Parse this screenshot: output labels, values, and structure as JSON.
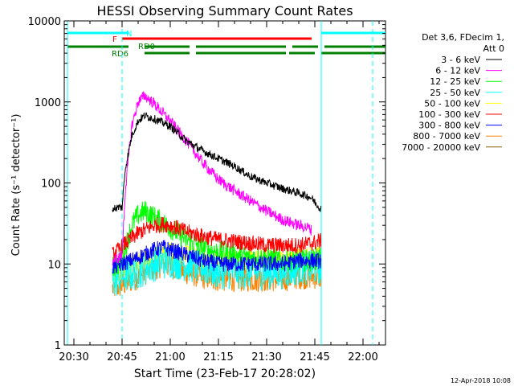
{
  "chart_data": {
    "type": "line",
    "title": "HESSI Observing Summary Count Rates",
    "xlabel": "Start Time (23-Feb-17 20:28:02)",
    "ylabel": "Count Rate (s⁻¹ detector⁻¹)",
    "y_scale": "log",
    "ylim": [
      1,
      10000
    ],
    "xlim": [
      "20:27",
      "22:07"
    ],
    "x_ticks": [
      "20:30",
      "20:45",
      "21:00",
      "21:15",
      "21:30",
      "21:45",
      "22:00"
    ],
    "y_ticks": [
      "1",
      "10",
      "100",
      "1000",
      "10000"
    ],
    "grid": false,
    "legend_header": [
      "Det 3,6, FDecim 1,",
      "Att 0"
    ],
    "legend_position": "right",
    "footer": "12-Apr-2018 10:08",
    "flag_bars": [
      {
        "label": "N",
        "color": "#00ffff",
        "segments": [
          [
            "20:28",
            "20:47"
          ],
          [
            "21:47",
            "22:07"
          ]
        ]
      },
      {
        "label": "F",
        "color": "#ff0000",
        "segments": [
          [
            "20:45",
            "21:44"
          ]
        ]
      },
      {
        "label": "RD0",
        "color": "#008000",
        "segments": [
          [
            "20:28",
            "20:47"
          ],
          [
            "20:52",
            "21:06"
          ],
          [
            "21:08",
            "21:36"
          ],
          [
            "21:38",
            "21:46"
          ],
          [
            "21:48",
            "22:07"
          ]
        ]
      },
      {
        "label": "RD6",
        "color": "#008000",
        "segments": [
          [
            "20:52",
            "21:06"
          ],
          [
            "21:08",
            "21:36"
          ],
          [
            "21:37",
            "21:45"
          ],
          [
            "21:47",
            "22:07"
          ]
        ]
      }
    ],
    "vlines": [
      {
        "x": "20:28",
        "color": "#00ffff",
        "style": "solid"
      },
      {
        "x": "20:45",
        "color": "#00ffff",
        "style": "dashed"
      },
      {
        "x": "21:47",
        "color": "#00ffff",
        "style": "solid"
      },
      {
        "x": "22:03",
        "color": "#00ffff",
        "style": "dashed"
      }
    ],
    "series": [
      {
        "name": "3 - 6 keV",
        "color": "#000000",
        "x": [
          "20:42",
          "20:44",
          "20:45",
          "20:46",
          "20:48",
          "20:50",
          "20:52",
          "20:55",
          "21:00",
          "21:05",
          "21:10",
          "21:15",
          "21:20",
          "21:25",
          "21:30",
          "21:35",
          "21:40",
          "21:43",
          "21:44",
          "21:46",
          "21:47"
        ],
        "values": [
          48,
          50,
          50,
          150,
          380,
          580,
          680,
          620,
          500,
          330,
          250,
          200,
          160,
          120,
          100,
          85,
          75,
          68,
          65,
          52,
          48
        ]
      },
      {
        "name": "6 - 12 keV",
        "color": "#ff00ff",
        "x": [
          "20:42",
          "20:44",
          "20:45",
          "20:46",
          "20:48",
          "20:50",
          "20:52",
          "20:55",
          "21:00",
          "21:05",
          "21:10",
          "21:15",
          "21:20",
          "21:25",
          "21:30",
          "21:35",
          "21:40",
          "21:43",
          "21:44"
        ],
        "values": [
          11,
          12,
          13,
          80,
          500,
          1000,
          1200,
          950,
          580,
          330,
          180,
          110,
          80,
          60,
          45,
          35,
          30,
          28,
          26
        ]
      },
      {
        "name": "12 - 25 keV",
        "color": "#00ff00",
        "x": [
          "20:42",
          "20:44",
          "20:45",
          "20:48",
          "20:50",
          "20:52",
          "20:55",
          "21:00",
          "21:05",
          "21:10",
          "21:15",
          "21:20",
          "21:25",
          "21:30",
          "21:35",
          "21:40",
          "21:44",
          "21:46",
          "21:47"
        ],
        "values": [
          9,
          10,
          11,
          30,
          40,
          45,
          38,
          28,
          20,
          16,
          14,
          13,
          12,
          12,
          11,
          11,
          11,
          12,
          12
        ]
      },
      {
        "name": "25 - 50 keV",
        "color": "#00ffff",
        "x": [
          "20:42",
          "20:45",
          "20:50",
          "20:55",
          "21:00",
          "21:05",
          "21:10",
          "21:15",
          "21:20",
          "21:25",
          "21:30",
          "21:35",
          "21:40",
          "21:44",
          "21:47"
        ],
        "values": [
          6,
          7,
          8,
          10,
          11,
          10,
          9,
          8,
          8,
          8,
          8,
          8,
          9,
          9,
          9
        ]
      },
      {
        "name": "50 - 100 keV",
        "color": "#ffff00",
        "x": [
          "20:42",
          "20:45",
          "20:50",
          "20:55",
          "21:00",
          "21:05",
          "21:10",
          "21:15",
          "21:20",
          "21:25",
          "21:30",
          "21:35",
          "21:40",
          "21:44",
          "21:47"
        ],
        "values": [
          7,
          8,
          10,
          13,
          14,
          13,
          12,
          11,
          11,
          11,
          11,
          11,
          12,
          12,
          12
        ]
      },
      {
        "name": "100 - 300 keV",
        "color": "#ff0000",
        "x": [
          "20:42",
          "20:44",
          "20:46",
          "20:50",
          "20:55",
          "20:58",
          "21:00",
          "21:05",
          "21:10",
          "21:15",
          "21:20",
          "21:25",
          "21:30",
          "21:35",
          "21:40",
          "21:44",
          "21:46",
          "21:47"
        ],
        "values": [
          13,
          15,
          18,
          24,
          30,
          31,
          30,
          25,
          22,
          20,
          19,
          18,
          17,
          17,
          17,
          18,
          19,
          19
        ]
      },
      {
        "name": "300 - 800 keV",
        "color": "#0000ff",
        "x": [
          "20:42",
          "20:45",
          "20:50",
          "20:55",
          "20:58",
          "21:00",
          "21:05",
          "21:10",
          "21:15",
          "21:20",
          "21:25",
          "21:30",
          "21:35",
          "21:40",
          "21:44",
          "21:47"
        ],
        "values": [
          9,
          10,
          12,
          15,
          16,
          15,
          13,
          11,
          10,
          10,
          10,
          10,
          10,
          11,
          11,
          11
        ]
      },
      {
        "name": "800 - 7000 keV",
        "color": "#ff8000",
        "x": [
          "20:42",
          "20:45",
          "20:50",
          "20:55",
          "20:58",
          "21:00",
          "21:05",
          "21:10",
          "21:15",
          "21:20",
          "21:25",
          "21:30",
          "21:35",
          "21:40",
          "21:44",
          "21:47"
        ],
        "values": [
          5,
          5.5,
          7,
          9,
          10,
          9.5,
          8,
          7,
          6.5,
          6.5,
          6.5,
          6.5,
          6.5,
          7,
          7,
          7
        ]
      },
      {
        "name": "7000 - 20000 keV",
        "color": "#806000",
        "x": [],
        "values": []
      }
    ]
  }
}
